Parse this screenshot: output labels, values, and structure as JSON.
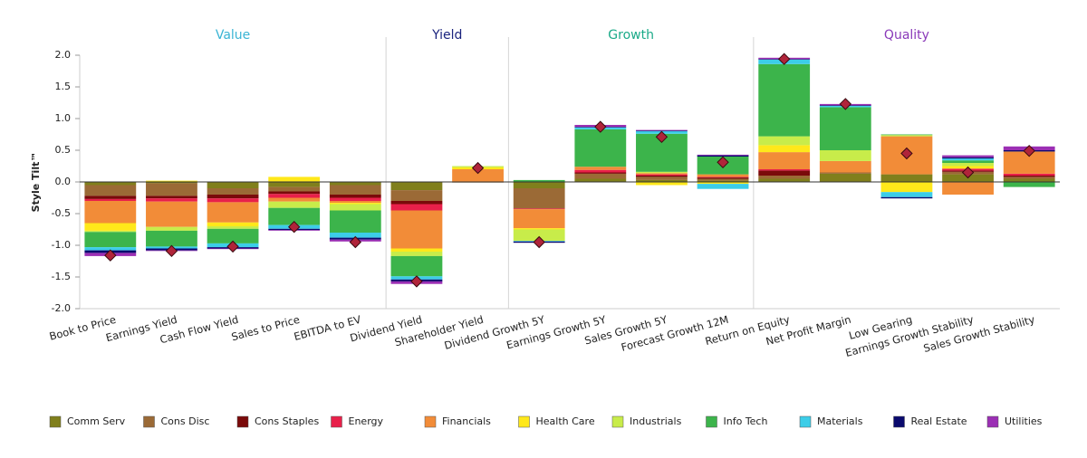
{
  "chart_data": {
    "type": "stacked_bar",
    "y_label": "Style Tilt™",
    "groups": [
      {
        "name": "Value",
        "color": "#3ab4d4",
        "categories": [
          "Book to Price",
          "Earnings Yield",
          "Cash Flow Yield",
          "Sales to Price",
          "EBITDA to EV"
        ]
      },
      {
        "name": "Yield",
        "color": "#1a237e",
        "categories": [
          "Dividend Yield",
          "Shareholder Yield"
        ]
      },
      {
        "name": "Growth",
        "color": "#1aaa88",
        "categories": [
          "Dividend Growth 5Y",
          "Earnings Growth 5Y",
          "Sales Growth 5Y",
          "Forecast Growth 12M"
        ]
      },
      {
        "name": "Quality",
        "color": "#8a3ab9",
        "categories": [
          "Return on Equity",
          "Net Profit Margin",
          "Low Gearing",
          "Earnings Growth Stability",
          "Sales Growth Stability"
        ]
      }
    ],
    "ylim": [
      -2,
      2
    ],
    "yticks": [
      {
        "value": -2,
        "label": "-2.0"
      },
      {
        "value": -1.5,
        "label": "-1.5"
      },
      {
        "value": -1,
        "label": "-1.0"
      },
      {
        "value": -0.5,
        "label": "-0.5"
      },
      {
        "value": 0,
        "label": "0.0"
      },
      {
        "value": 0.5,
        "label": "0.5"
      },
      {
        "value": 1,
        "label": "1.0"
      },
      {
        "value": 1.5,
        "label": "1.5"
      },
      {
        "value": 2,
        "label": "2.0"
      }
    ],
    "series": [
      {
        "name": "Comm Serv",
        "color": "#807f1c",
        "values": [
          -0.05,
          -0.02,
          -0.1,
          -0.08,
          -0.05,
          -0.13,
          0,
          -0.1,
          0.05,
          0.03,
          0.02,
          0.05,
          0.13,
          0.12,
          0.12,
          0.05
        ]
      },
      {
        "name": "Cons Disc",
        "color": "#9b6a36",
        "values": [
          -0.17,
          -0.2,
          -0.1,
          -0.07,
          -0.15,
          -0.17,
          -0.01,
          -0.32,
          0.08,
          0.05,
          0.03,
          0.05,
          0.02,
          0,
          0.04,
          0.03
        ]
      },
      {
        "name": "Cons Staples",
        "color": "#7a0a0a",
        "values": [
          -0.05,
          -0.04,
          -0.06,
          -0.04,
          -0.05,
          -0.05,
          0,
          0,
          0.02,
          0.02,
          0.02,
          0.08,
          0,
          0,
          0.02,
          0.02
        ]
      },
      {
        "name": "Energy",
        "color": "#e8204a",
        "values": [
          -0.03,
          -0.05,
          -0.06,
          -0.06,
          -0.05,
          -0.1,
          0,
          -0.01,
          0.04,
          0.02,
          0.01,
          0.02,
          0,
          0,
          0.03,
          0.03
        ]
      },
      {
        "name": "Financials",
        "color": "#f28c38",
        "values": [
          -0.35,
          -0.4,
          -0.32,
          -0.06,
          -0.03,
          -0.6,
          0.2,
          -0.3,
          0.05,
          0.02,
          0.04,
          0.27,
          0.18,
          0.6,
          -0.2,
          0.35
        ]
      },
      {
        "name": "Health Care",
        "color": "#ffe81a",
        "values": [
          -0.12,
          0.02,
          -0.06,
          0.08,
          -0.02,
          -0.05,
          0.03,
          -0.02,
          0,
          -0.05,
          -0.03,
          0.11,
          0,
          -0.16,
          0.04,
          0
        ]
      },
      {
        "name": "Industrials",
        "color": "#c8ec4a",
        "values": [
          -0.02,
          -0.06,
          -0.04,
          -0.1,
          -0.1,
          -0.07,
          0.02,
          -0.18,
          0,
          0.02,
          0,
          0.14,
          0.17,
          0.02,
          0.05,
          0
        ]
      },
      {
        "name": "Info Tech",
        "color": "#3cb44b",
        "values": [
          -0.24,
          -0.25,
          -0.23,
          -0.27,
          -0.35,
          -0.32,
          0,
          0.03,
          0.59,
          0.6,
          0.28,
          1.14,
          0.68,
          0.01,
          0.04,
          -0.08
        ]
      },
      {
        "name": "Materials",
        "color": "#3ccde8",
        "values": [
          -0.05,
          -0.03,
          -0.06,
          -0.06,
          -0.08,
          -0.05,
          0,
          -0.01,
          0.03,
          0.04,
          -0.08,
          0.07,
          0.02,
          -0.08,
          0.03,
          0
        ]
      },
      {
        "name": "Real Estate",
        "color": "#0a0a6e",
        "values": [
          -0.04,
          -0.03,
          -0.02,
          -0.02,
          -0.03,
          -0.03,
          0,
          -0.02,
          0.01,
          0.01,
          0.02,
          0.01,
          0.01,
          -0.02,
          0.02,
          0.02
        ]
      },
      {
        "name": "Utilities",
        "color": "#9b2fb4",
        "values": [
          -0.05,
          -0.01,
          -0.01,
          -0.01,
          -0.03,
          -0.04,
          0,
          0,
          0.03,
          0.01,
          0.01,
          0.02,
          0.02,
          0,
          0.03,
          0.06
        ]
      }
    ],
    "totals": {
      "color": "#b0243a",
      "values": [
        -1.16,
        -1.09,
        -1.02,
        -0.71,
        -0.95,
        -1.57,
        0.22,
        -0.95,
        0.87,
        0.71,
        0.31,
        1.94,
        1.23,
        0.45,
        0.15,
        0.49
      ]
    }
  }
}
